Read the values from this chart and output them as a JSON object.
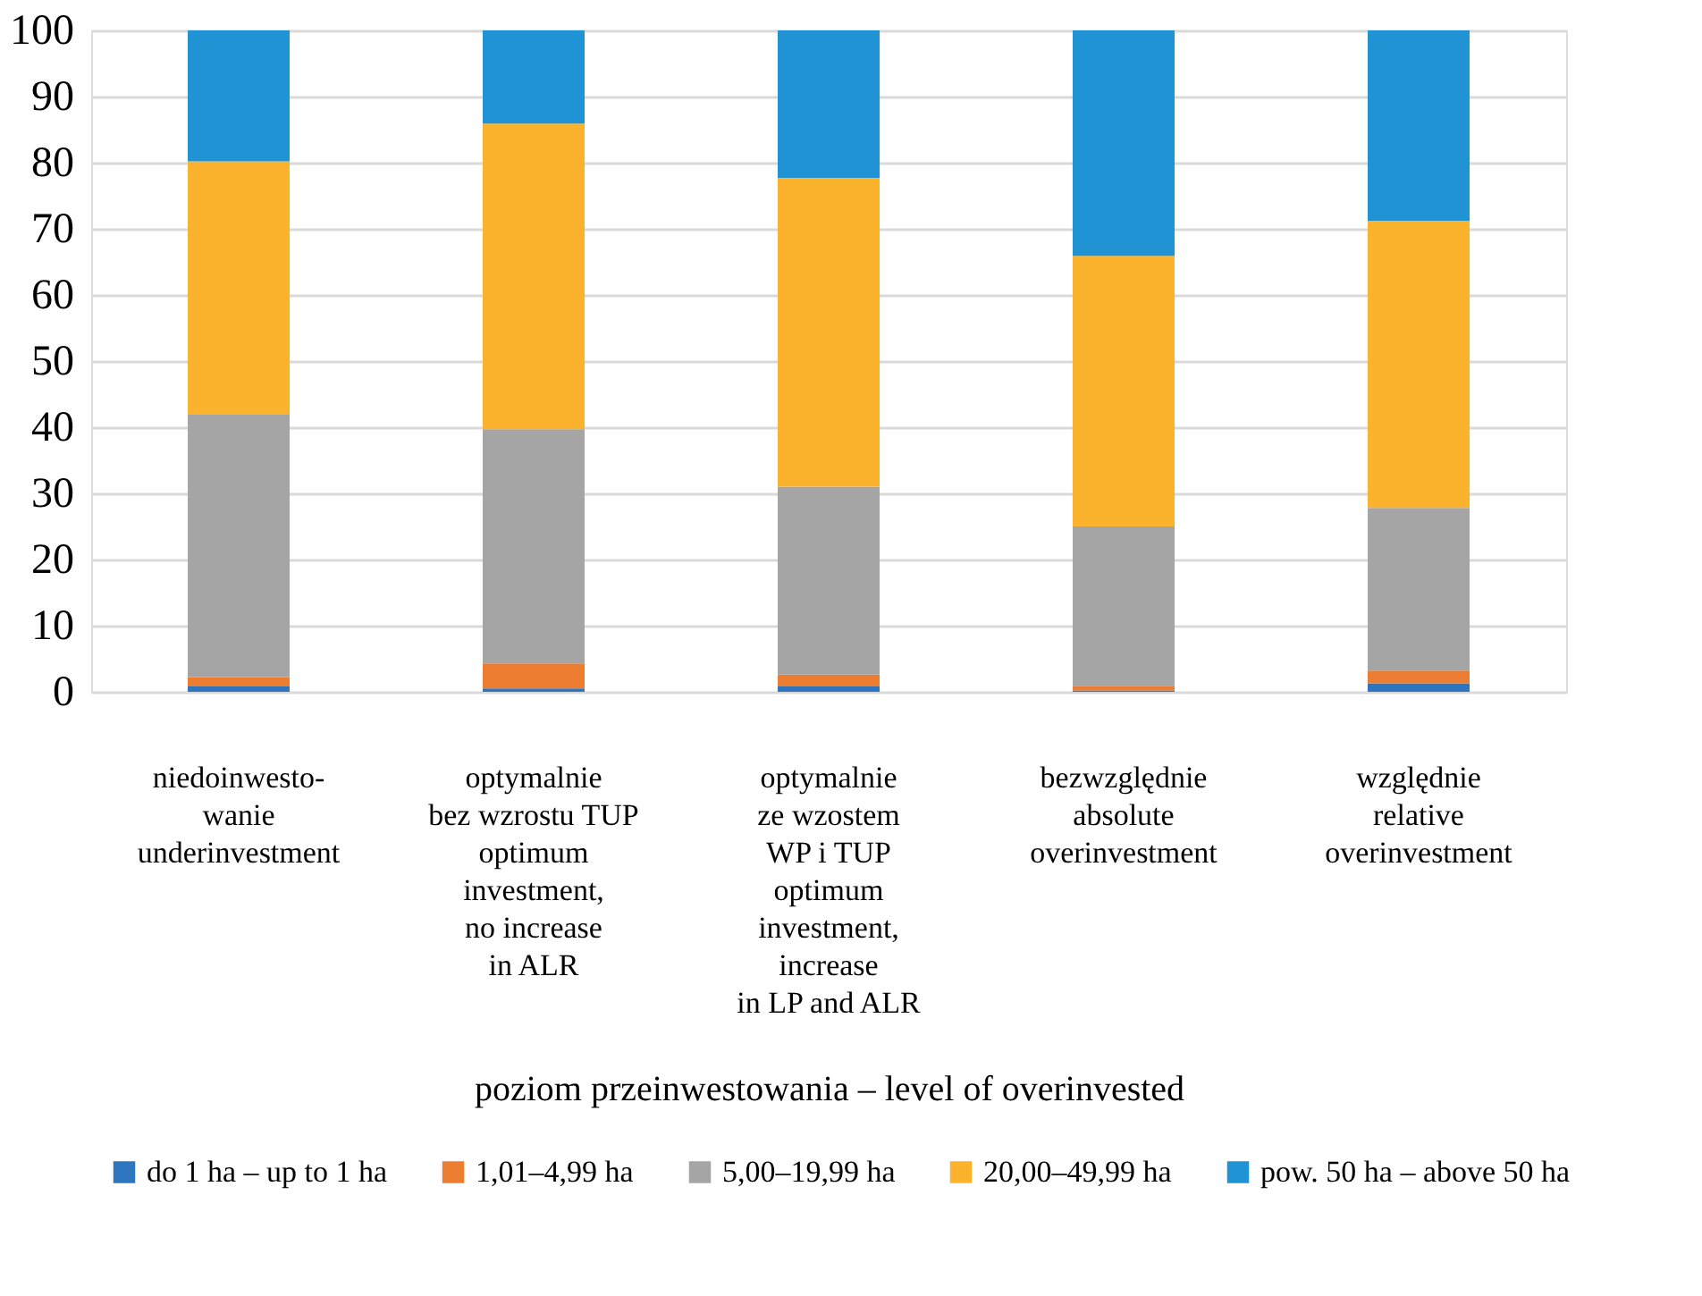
{
  "chart_data": {
    "type": "bar",
    "stacked": true,
    "xlabel": "poziom przeinwestowania – level of overinvested",
    "categories": [
      "niedoinwesto-\nwanie\nunderinvestment",
      "optymalnie\nbez wzrostu TUP\noptimum\ninvestment,\nno increase\nin ALR",
      "optymalnie\nze wzostem\nWP i TUP\noptimum\ninvestment,\nincrease\nin LP and ALR",
      "bezwzględnie\nabsolute\noverinvestment",
      "względnie\nrelative\noverinvestment"
    ],
    "series": [
      {
        "name": "do 1 ha – up to 1 ha",
        "color": "#2e75c0",
        "values": [
          0.8,
          0.5,
          0.8,
          0.2,
          1.3
        ]
      },
      {
        "name": "1,01–4,99 ha",
        "color": "#ed7d31",
        "values": [
          1.4,
          3.8,
          1.8,
          0.7,
          1.9
        ]
      },
      {
        "name": "5,00–19,99 ha",
        "color": "#a5a5a5",
        "values": [
          39.8,
          35.4,
          28.4,
          24.1,
          24.6
        ]
      },
      {
        "name": "20,00–49,99 ha",
        "color": "#fbb32d",
        "values": [
          38.2,
          46.2,
          46.7,
          40.9,
          43.4
        ]
      },
      {
        "name": "pow. 50 ha – above 50 ha",
        "color": "#1f93d3",
        "values": [
          19.8,
          14.1,
          22.3,
          34.1,
          28.8
        ]
      }
    ],
    "ylim": [
      0,
      100
    ],
    "yticks": [
      0,
      10,
      20,
      30,
      40,
      50,
      60,
      70,
      80,
      90,
      100
    ],
    "grid": "y",
    "legend": "bottom"
  }
}
